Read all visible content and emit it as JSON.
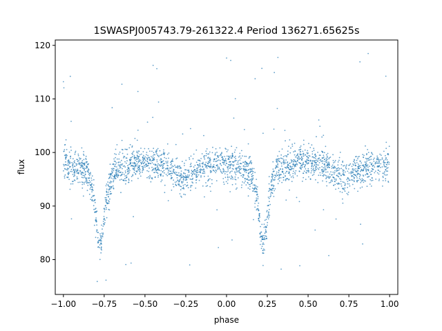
{
  "chart_data": {
    "type": "scatter",
    "title": "1SWASPJ005743.79-261322.4 Period 136271.65625s",
    "xlabel": "phase",
    "ylabel": "flux",
    "xlim": [
      -1.05,
      1.05
    ],
    "ylim": [
      73.5,
      121
    ],
    "xticks": [
      -1.0,
      -0.75,
      -0.5,
      -0.25,
      0.0,
      0.25,
      0.5,
      0.75,
      1.0
    ],
    "xtick_labels": [
      "−1.00",
      "−0.75",
      "−0.50",
      "−0.25",
      "0.00",
      "0.25",
      "0.50",
      "0.75",
      "1.00"
    ],
    "yticks": [
      80,
      90,
      100,
      110,
      120
    ],
    "ytick_labels": [
      "80",
      "90",
      "100",
      "110",
      "120"
    ],
    "grid": false,
    "marker_color": "#1f77b4",
    "series": [
      {
        "phase_curve": [
          {
            "x": -1.0,
            "y": 97.8
          },
          {
            "x": -0.92,
            "y": 97.3
          },
          {
            "x": -0.85,
            "y": 96.5
          },
          {
            "x": -0.81,
            "y": 91.0
          },
          {
            "x": -0.79,
            "y": 84.5
          },
          {
            "x": -0.775,
            "y": 82.2
          },
          {
            "x": -0.76,
            "y": 84.5
          },
          {
            "x": -0.74,
            "y": 91.0
          },
          {
            "x": -0.7,
            "y": 96.5
          },
          {
            "x": -0.55,
            "y": 98.3
          },
          {
            "x": -0.45,
            "y": 98.0
          },
          {
            "x": -0.35,
            "y": 96.8
          },
          {
            "x": -0.27,
            "y": 95.0
          },
          {
            "x": -0.2,
            "y": 96.5
          },
          {
            "x": -0.08,
            "y": 97.8
          },
          {
            "x": 0.0,
            "y": 97.8
          },
          {
            "x": 0.08,
            "y": 97.3
          },
          {
            "x": 0.15,
            "y": 96.5
          },
          {
            "x": 0.19,
            "y": 91.0
          },
          {
            "x": 0.21,
            "y": 84.5
          },
          {
            "x": 0.225,
            "y": 82.2
          },
          {
            "x": 0.24,
            "y": 84.5
          },
          {
            "x": 0.26,
            "y": 91.0
          },
          {
            "x": 0.3,
            "y": 96.5
          },
          {
            "x": 0.45,
            "y": 98.3
          },
          {
            "x": 0.55,
            "y": 98.0
          },
          {
            "x": 0.65,
            "y": 96.8
          },
          {
            "x": 0.73,
            "y": 95.0
          },
          {
            "x": 0.8,
            "y": 96.5
          },
          {
            "x": 0.92,
            "y": 97.8
          },
          {
            "x": 1.0,
            "y": 97.8
          }
        ]
      }
    ]
  }
}
